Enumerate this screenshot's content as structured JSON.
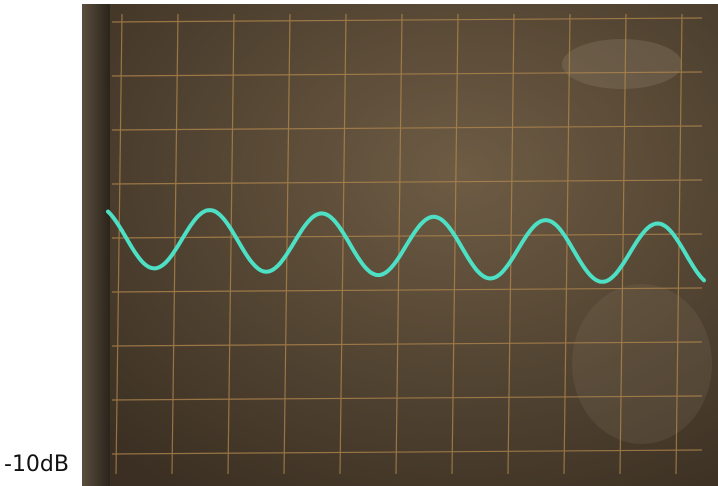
{
  "caption": "-10dB"
}
